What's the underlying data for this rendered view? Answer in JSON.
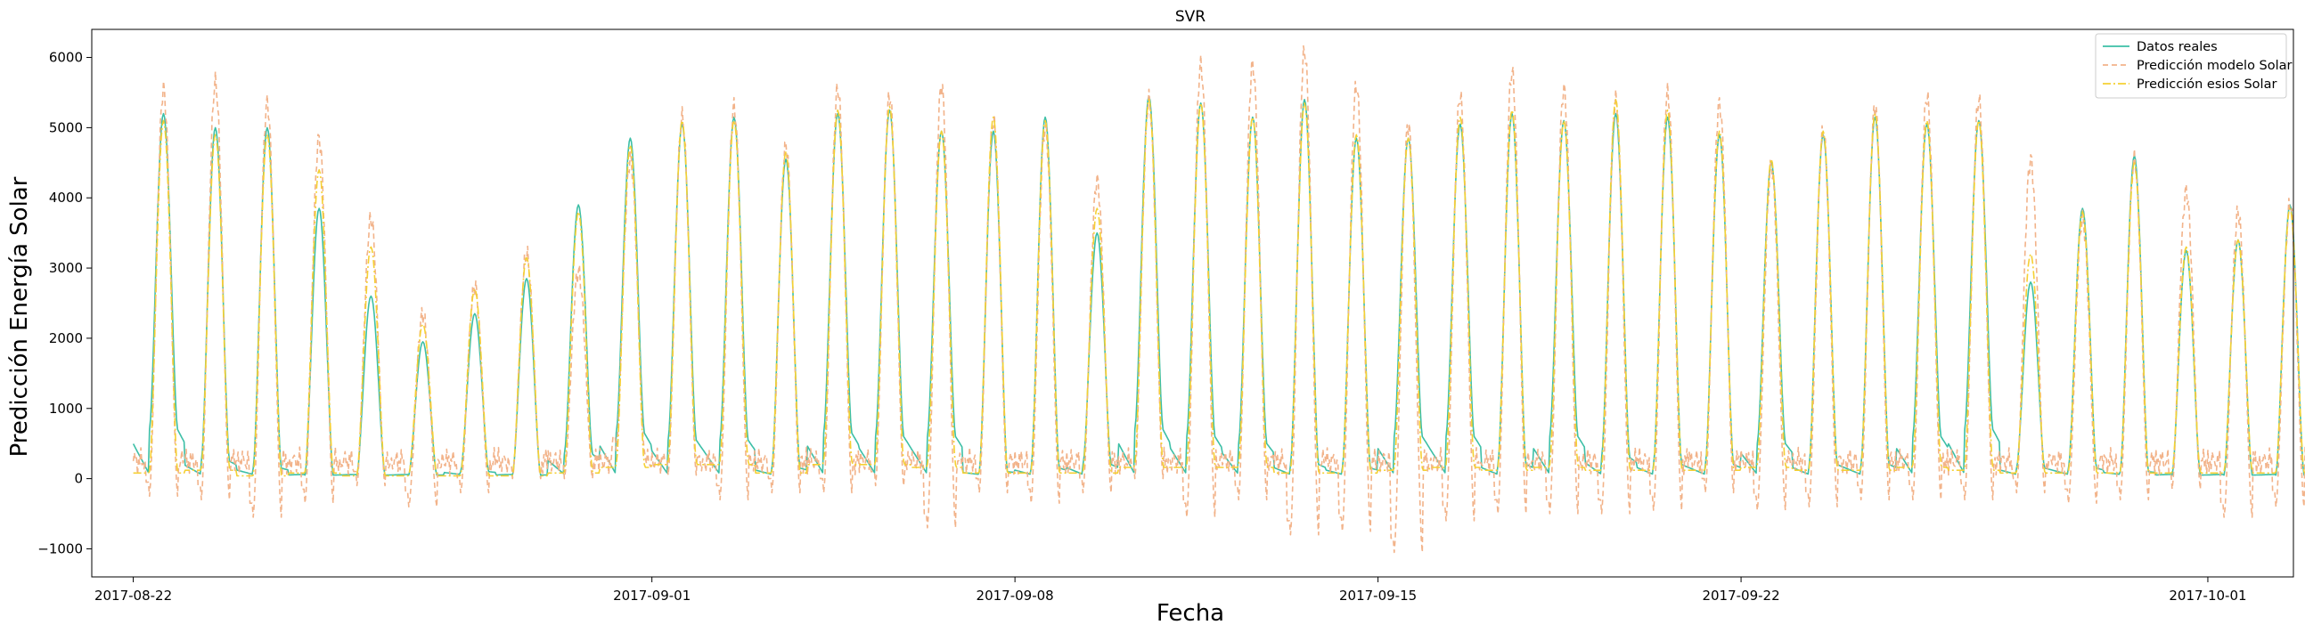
{
  "chart_data": {
    "type": "line",
    "title": "SVR",
    "xlabel": "Fecha",
    "ylabel": "Predicción Energía Solar",
    "x_start": "2017-08-22",
    "x_end": "2017-10-02",
    "xlim": [
      "2017-08-21",
      "2017-10-03"
    ],
    "ylim": [
      -1400,
      6400
    ],
    "yticks": [
      -1000,
      0,
      1000,
      2000,
      3000,
      4000,
      5000,
      6000
    ],
    "xticks": [
      "2017-08-22",
      "2017-09-01",
      "2017-09-08",
      "2017-09-15",
      "2017-09-22",
      "2017-10-01"
    ],
    "grid": false,
    "legend_position": "top-right",
    "colors": {
      "Datos reales": "#3cbfa6",
      "Predicción modelo Solar": "#f2b38a",
      "Predicción esios Solar": "#f5d033"
    },
    "daily_peaks": {
      "x": [
        "2017-08-22",
        "2017-08-23",
        "2017-08-24",
        "2017-08-25",
        "2017-08-26",
        "2017-08-27",
        "2017-08-28",
        "2017-08-29",
        "2017-08-30",
        "2017-08-31",
        "2017-09-01",
        "2017-09-02",
        "2017-09-03",
        "2017-09-04",
        "2017-09-05",
        "2017-09-06",
        "2017-09-07",
        "2017-09-08",
        "2017-09-09",
        "2017-09-10",
        "2017-09-11",
        "2017-09-12",
        "2017-09-13",
        "2017-09-14",
        "2017-09-15",
        "2017-09-16",
        "2017-09-17",
        "2017-09-18",
        "2017-09-19",
        "2017-09-20",
        "2017-09-21",
        "2017-09-22",
        "2017-09-23",
        "2017-09-24",
        "2017-09-25",
        "2017-09-26",
        "2017-09-27",
        "2017-09-28",
        "2017-09-29",
        "2017-09-30",
        "2017-10-01",
        "2017-10-02"
      ],
      "series": [
        {
          "name": "Datos reales",
          "values": [
            5200,
            5000,
            5000,
            3850,
            2600,
            1950,
            2350,
            2850,
            3900,
            4850,
            5050,
            5150,
            4550,
            5200,
            5250,
            4950,
            4950,
            5150,
            3500,
            5450,
            5350,
            5150,
            5400,
            4850,
            4850,
            5050,
            5200,
            5100,
            5200,
            5150,
            4900,
            4500,
            4900,
            5150,
            5050,
            5100,
            2800,
            3850,
            4600,
            3250,
            3400,
            3900
          ],
          "valley": [
            700,
            250,
            150,
            50,
            50,
            50,
            100,
            50,
            350,
            650,
            550,
            550,
            150,
            650,
            600,
            600,
            100,
            150,
            200,
            700,
            600,
            500,
            200,
            150,
            600,
            600,
            200,
            600,
            300,
            200,
            200,
            500,
            200,
            200,
            600,
            700,
            150,
            150,
            100,
            50,
            50,
            50
          ]
        },
        {
          "name": "Predicción modelo Solar",
          "values": [
            5550,
            5650,
            5350,
            4850,
            3700,
            2350,
            2750,
            3200,
            2950,
            4550,
            5150,
            5300,
            4750,
            5550,
            5450,
            5600,
            5100,
            5000,
            4250,
            5400,
            5900,
            5900,
            6100,
            5600,
            5050,
            5450,
            5800,
            5550,
            5400,
            5500,
            5350,
            4450,
            4950,
            5300,
            5450,
            5400,
            4550,
            3700,
            4550,
            4100,
            3800,
            3900
          ],
          "valley": [
            -250,
            -300,
            -550,
            -350,
            -100,
            -400,
            -200,
            0,
            0,
            400,
            50,
            -300,
            -200,
            -200,
            -100,
            -700,
            -200,
            -350,
            -200,
            0,
            -550,
            -300,
            -800,
            -750,
            -1050,
            -600,
            -500,
            -500,
            -500,
            -450,
            -200,
            -450,
            -400,
            -300,
            -300,
            -300,
            -200,
            -350,
            -300,
            -150,
            -550,
            -400
          ]
        },
        {
          "name": "Predicción esios Solar",
          "values": [
            5100,
            4900,
            4900,
            4400,
            3300,
            2200,
            2700,
            3150,
            3800,
            4750,
            5100,
            5100,
            4650,
            5250,
            5300,
            4950,
            5150,
            5100,
            3850,
            5400,
            5350,
            5150,
            5350,
            4900,
            4850,
            5150,
            5250,
            5100,
            5400,
            5250,
            4950,
            4550,
            4950,
            5200,
            5100,
            5100,
            3200,
            3800,
            4500,
            3300,
            3400,
            3850
          ],
          "valley": [
            100,
            150,
            50,
            100,
            50,
            50,
            50,
            50,
            100,
            200,
            250,
            250,
            100,
            250,
            250,
            200,
            100,
            100,
            100,
            200,
            200,
            200,
            100,
            100,
            150,
            200,
            150,
            200,
            150,
            150,
            150,
            200,
            150,
            150,
            200,
            150,
            100,
            100,
            100,
            100,
            100,
            100
          ]
        }
      ]
    },
    "legend": [
      "Datos reales",
      "Predicción modelo Solar",
      "Predicción esios Solar"
    ]
  }
}
